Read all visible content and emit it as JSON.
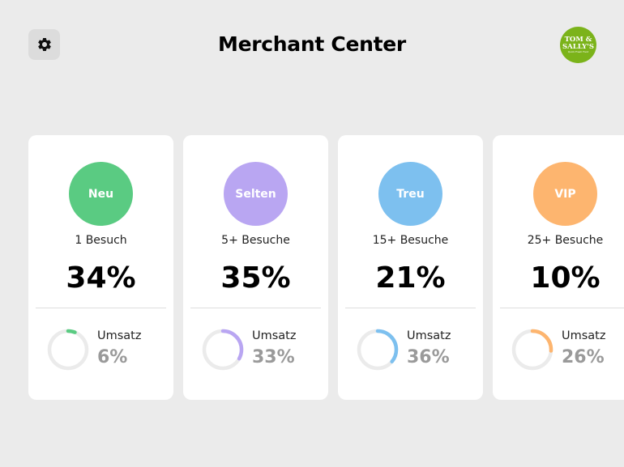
{
  "header": {
    "title": "Merchant Center",
    "logo": {
      "line1": "TOM &",
      "line2": "SALLY'S",
      "line3": "Quick Fresh Food"
    }
  },
  "segments": [
    {
      "label": "Neu",
      "visits": "1 Besuch",
      "percent": "34%",
      "revenue_label": "Umsatz",
      "revenue_value": "6%",
      "revenue_fraction": 0.06,
      "color": "#5acb82"
    },
    {
      "label": "Selten",
      "visits": "5+ Besuche",
      "percent": "35%",
      "revenue_label": "Umsatz",
      "revenue_value": "33%",
      "revenue_fraction": 0.33,
      "color": "#b9a6f2"
    },
    {
      "label": "Treu",
      "visits": "15+ Besuche",
      "percent": "21%",
      "revenue_label": "Umsatz",
      "revenue_value": "36%",
      "revenue_fraction": 0.36,
      "color": "#7dc0ef"
    },
    {
      "label": "VIP",
      "visits": "25+ Besuche",
      "percent": "10%",
      "revenue_label": "Umsatz",
      "revenue_value": "26%",
      "revenue_fraction": 0.26,
      "color": "#fdb56f"
    }
  ],
  "icons": {
    "settings": "gear-icon"
  }
}
